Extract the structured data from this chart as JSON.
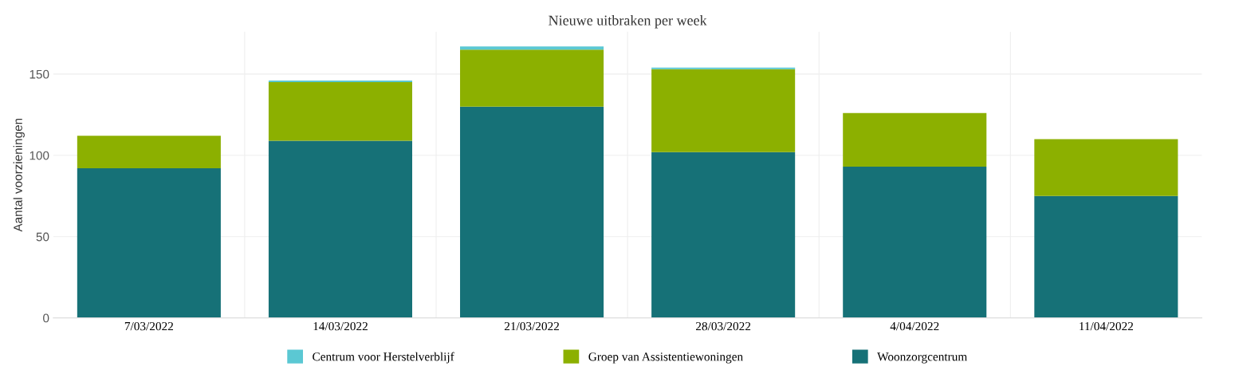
{
  "chart_data": {
    "type": "bar",
    "title": "Nieuwe uitbraken per week",
    "ylabel": "Aantal voorzieningen",
    "categories": [
      "7/03/2022",
      "14/03/2022",
      "21/03/2022",
      "28/03/2022",
      "4/04/2022",
      "11/04/2022"
    ],
    "stacked": true,
    "series": [
      {
        "name": "Woonzorgcentrum",
        "color": "#167177",
        "values": [
          92,
          109,
          130,
          102,
          93,
          75
        ]
      },
      {
        "name": "Groep van Assistentiewoningen",
        "color": "#8cb000",
        "values": [
          20,
          36,
          35,
          51,
          33,
          35
        ]
      },
      {
        "name": "Centrum voor Herstelverblijf",
        "color": "#5bc8d3",
        "values": [
          0,
          1,
          2,
          1,
          0,
          0
        ]
      }
    ],
    "ylim": [
      0,
      176
    ],
    "yticks": [
      0,
      50,
      100,
      150
    ],
    "grid": true,
    "legend": "bottom"
  }
}
